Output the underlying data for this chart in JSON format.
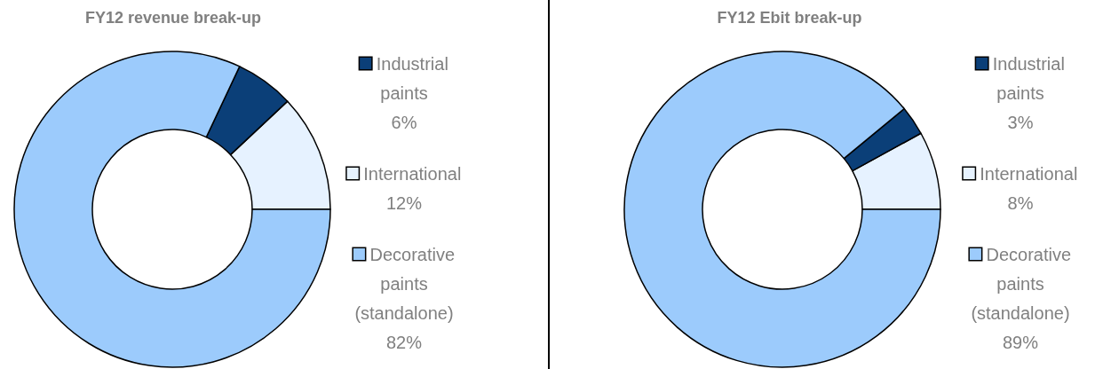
{
  "chart_data": [
    {
      "type": "donut",
      "title": "FY12 revenue break-up",
      "categories": [
        "International",
        "Industrial paints",
        "Decorative paints (standalone)"
      ],
      "values": [
        12,
        6,
        82
      ],
      "colors": [
        "#e6f2ff",
        "#0b3f78",
        "#9ccbfc"
      ],
      "value_labels": [
        "12%",
        "6%",
        "82%"
      ],
      "legend": "right"
    },
    {
      "type": "donut",
      "title": "FY12 Ebit break-up",
      "categories": [
        "International",
        "Industrial paints",
        "Decorative paints (standalone)"
      ],
      "values": [
        8,
        3,
        89
      ],
      "colors": [
        "#e6f2ff",
        "#0b3f78",
        "#9ccbfc"
      ],
      "value_labels": [
        "8%",
        "3%",
        "89%"
      ],
      "legend": "right"
    }
  ]
}
